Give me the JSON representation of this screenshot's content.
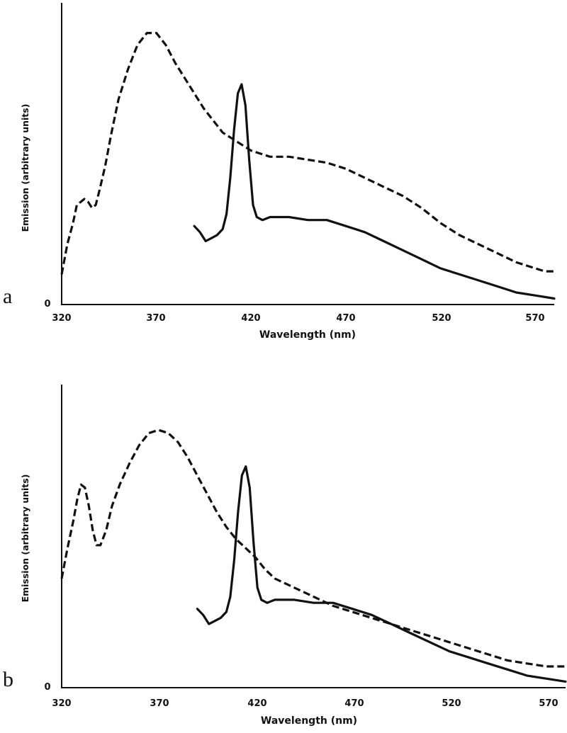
{
  "chart_data": [
    {
      "type": "line",
      "panel_label": "a",
      "xlabel": "Wavelength (nm)",
      "ylabel": "Emission (arbitrary units)",
      "x_ticks": [
        "320",
        "370",
        "420",
        "470",
        "520",
        "570"
      ],
      "y_ticks": [
        "0"
      ],
      "xlim": [
        320,
        580
      ],
      "ylim": [
        0,
        100
      ],
      "series": [
        {
          "name": "dashed",
          "style": "dashed",
          "x": [
            320,
            323,
            326,
            328,
            330,
            332,
            334,
            336,
            338,
            340,
            343,
            346,
            350,
            355,
            360,
            365,
            370,
            375,
            380,
            385,
            390,
            395,
            400,
            405,
            410,
            415,
            420,
            425,
            430,
            440,
            450,
            460,
            470,
            480,
            490,
            500,
            510,
            520,
            530,
            540,
            550,
            560,
            570,
            575,
            580
          ],
          "y": [
            10,
            20,
            27,
            33,
            34,
            35,
            34,
            32,
            33,
            38,
            46,
            56,
            68,
            78,
            86,
            90,
            90,
            86,
            80,
            75,
            70,
            65,
            61,
            57,
            55,
            53,
            51,
            50,
            49,
            49,
            48,
            47,
            45,
            42,
            39,
            36,
            32,
            27,
            23,
            20,
            17,
            14,
            12,
            11,
            11
          ]
        },
        {
          "name": "solid",
          "style": "solid",
          "x": [
            390,
            393,
            396,
            399,
            402,
            405,
            407,
            409,
            411,
            413,
            415,
            417,
            419,
            421,
            423,
            426,
            430,
            440,
            450,
            460,
            470,
            480,
            490,
            500,
            510,
            520,
            530,
            540,
            550,
            560,
            570,
            580
          ],
          "y": [
            26,
            24,
            21,
            22,
            23,
            25,
            30,
            42,
            58,
            70,
            73,
            66,
            48,
            33,
            29,
            28,
            29,
            29,
            28,
            28,
            26,
            24,
            21,
            18,
            15,
            12,
            10,
            8,
            6,
            4,
            3,
            2
          ]
        }
      ]
    },
    {
      "type": "line",
      "panel_label": "b",
      "xlabel": "Wavelength (nm)",
      "ylabel": "Emission (arbitrary units)",
      "x_ticks": [
        "320",
        "370",
        "420",
        "470",
        "520",
        "570"
      ],
      "y_ticks": [
        "0"
      ],
      "xlim": [
        320,
        580
      ],
      "ylim": [
        0,
        100
      ],
      "series": [
        {
          "name": "dashed",
          "style": "dashed",
          "x": [
            320,
            323,
            326,
            328,
            330,
            332,
            334,
            336,
            338,
            340,
            343,
            346,
            350,
            355,
            360,
            365,
            370,
            375,
            380,
            385,
            390,
            395,
            400,
            405,
            410,
            415,
            420,
            425,
            430,
            440,
            450,
            460,
            470,
            480,
            490,
            500,
            510,
            520,
            530,
            540,
            550,
            560,
            570,
            575,
            580
          ],
          "y": [
            36,
            46,
            55,
            62,
            67,
            66,
            60,
            52,
            47,
            47,
            52,
            60,
            67,
            74,
            80,
            84,
            85,
            84,
            81,
            76,
            70,
            64,
            58,
            53,
            49,
            46,
            43,
            39,
            36,
            33,
            30,
            27,
            25,
            23,
            21,
            19,
            17,
            15,
            13,
            11,
            9,
            8,
            7,
            7,
            7
          ]
        },
        {
          "name": "solid",
          "style": "solid",
          "x": [
            390,
            393,
            396,
            399,
            402,
            405,
            407,
            409,
            411,
            413,
            415,
            417,
            419,
            421,
            423,
            426,
            430,
            440,
            450,
            460,
            470,
            480,
            490,
            500,
            510,
            520,
            530,
            540,
            550,
            560,
            570,
            580
          ],
          "y": [
            26,
            24,
            21,
            22,
            23,
            25,
            30,
            42,
            58,
            70,
            73,
            66,
            48,
            33,
            29,
            28,
            29,
            29,
            28,
            28,
            26,
            24,
            21,
            18,
            15,
            12,
            10,
            8,
            6,
            4,
            3,
            2
          ]
        }
      ]
    }
  ]
}
